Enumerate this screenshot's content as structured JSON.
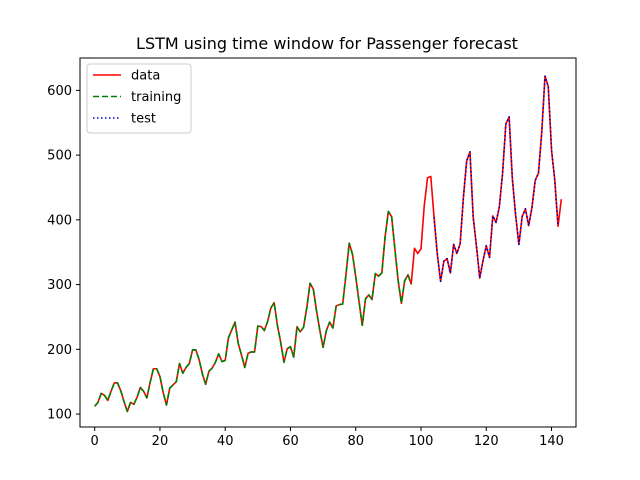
{
  "chart_data": {
    "type": "line",
    "title": "LSTM using time window for Passenger forecast",
    "xlabel": "",
    "ylabel": "",
    "xlim": [
      -4.5,
      147.5
    ],
    "ylim": [
      80,
      650
    ],
    "xticks": [
      0,
      20,
      40,
      60,
      80,
      100,
      120,
      140
    ],
    "yticks": [
      100,
      200,
      300,
      400,
      500,
      600
    ],
    "grid": false,
    "legend_position": "top-left",
    "series": [
      {
        "name": "data",
        "color": "#ff0000",
        "style": "solid",
        "start": 0,
        "values": [
          112,
          118,
          132,
          129,
          121,
          135,
          148,
          148,
          136,
          119,
          104,
          118,
          115,
          126,
          141,
          135,
          125,
          149,
          170,
          170,
          158,
          133,
          114,
          140,
          145,
          150,
          178,
          163,
          172,
          178,
          199,
          199,
          184,
          162,
          146,
          166,
          171,
          180,
          193,
          181,
          183,
          218,
          230,
          242,
          209,
          191,
          172,
          194,
          196,
          196,
          236,
          235,
          229,
          243,
          264,
          272,
          237,
          211,
          180,
          201,
          204,
          188,
          235,
          227,
          234,
          264,
          302,
          293,
          259,
          229,
          203,
          229,
          242,
          233,
          267,
          269,
          270,
          315,
          364,
          347,
          312,
          274,
          237,
          278,
          284,
          277,
          317,
          313,
          318,
          374,
          413,
          405,
          355,
          306,
          271,
          306,
          315,
          301,
          356,
          348,
          355,
          422,
          465,
          467,
          404,
          347,
          305,
          336,
          340,
          318,
          362,
          348,
          363,
          435,
          491,
          505,
          404,
          359,
          310,
          337,
          360,
          342,
          406,
          396,
          420,
          472,
          548,
          559,
          463,
          407,
          362,
          405,
          417,
          391,
          419,
          461,
          472,
          535,
          622,
          606,
          508,
          461,
          390,
          432
        ]
      },
      {
        "name": "training",
        "color": "#008000",
        "style": "dashed",
        "start": 0,
        "values": [
          112,
          118,
          132,
          129,
          121,
          135,
          148,
          148,
          136,
          119,
          104,
          118,
          115,
          126,
          141,
          135,
          125,
          149,
          170,
          170,
          158,
          133,
          114,
          140,
          145,
          150,
          178,
          163,
          172,
          178,
          199,
          199,
          184,
          162,
          146,
          166,
          171,
          180,
          193,
          181,
          183,
          218,
          230,
          242,
          209,
          191,
          172,
          194,
          196,
          196,
          236,
          235,
          229,
          243,
          264,
          272,
          237,
          211,
          180,
          201,
          204,
          188,
          235,
          227,
          234,
          264,
          302,
          293,
          259,
          229,
          203,
          229,
          242,
          233,
          267,
          269,
          270,
          315,
          364,
          347,
          312,
          274,
          237,
          278,
          284,
          277,
          317,
          313,
          318,
          374,
          413,
          405,
          355,
          306,
          271,
          306,
          315,
          301
        ]
      },
      {
        "name": "test",
        "color": "#0000bf",
        "style": "dotted",
        "start": 104,
        "values": [
          404,
          347,
          305,
          336,
          340,
          318,
          362,
          348,
          363,
          435,
          491,
          505,
          404,
          359,
          310,
          337,
          360,
          342,
          406,
          396,
          420,
          472,
          548,
          559,
          463,
          407,
          362,
          405,
          417,
          391,
          419,
          461,
          472,
          535,
          622,
          606,
          508,
          461,
          390
        ]
      }
    ]
  }
}
